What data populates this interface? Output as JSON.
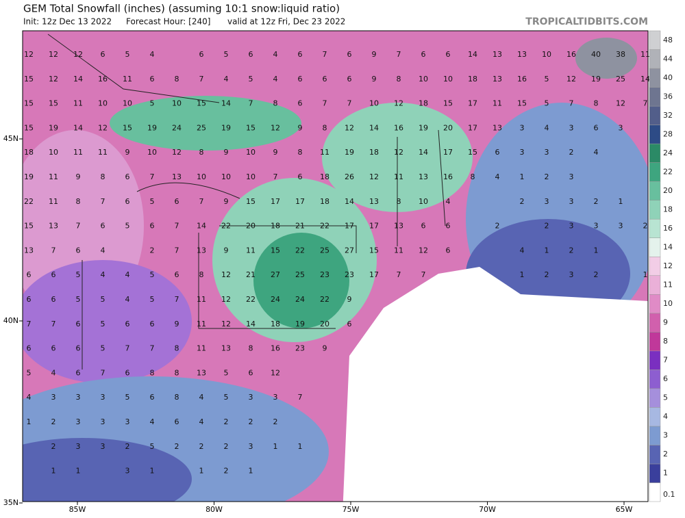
{
  "header": {
    "title": "GEM Total Snowfall (inches) (assuming 10:1 snow:liquid ratio)",
    "init": "Init: 12z Dec 13 2022",
    "forecast": "Forecast Hour: [240]",
    "valid": "valid at 12z Fri, Dec 23 2022",
    "source": "TROPICALTIDBITS.COM"
  },
  "map": {
    "lon_labels": [
      "85W",
      "80W",
      "75W",
      "70W",
      "65W"
    ],
    "lat_labels": [
      "45N",
      "40N",
      "35N"
    ],
    "labels": [
      [
        12,
        12,
        12,
        6,
        5,
        4,
        null,
        6,
        5,
        6,
        4,
        6,
        7,
        6,
        9,
        7,
        6,
        6,
        14,
        13,
        13,
        10,
        16,
        40,
        38,
        11
      ],
      [
        15,
        12,
        14,
        16,
        11,
        6,
        8,
        7,
        4,
        5,
        4,
        6,
        6,
        6,
        9,
        8,
        10,
        10,
        18,
        13,
        16,
        5,
        12,
        19,
        25,
        14
      ],
      [
        15,
        15,
        11,
        10,
        10,
        5,
        10,
        15,
        14,
        7,
        8,
        6,
        7,
        7,
        10,
        12,
        18,
        15,
        17,
        11,
        15,
        5,
        7,
        8,
        12,
        7
      ],
      [
        15,
        19,
        14,
        12,
        15,
        19,
        24,
        25,
        19,
        15,
        12,
        9,
        8,
        12,
        14,
        16,
        19,
        20,
        17,
        13,
        3,
        4,
        3,
        6,
        3,
        null
      ],
      [
        18,
        10,
        11,
        11,
        9,
        10,
        12,
        8,
        9,
        10,
        9,
        8,
        11,
        19,
        18,
        12,
        14,
        17,
        15,
        6,
        3,
        3,
        2,
        4,
        null,
        null
      ],
      [
        19,
        11,
        9,
        8,
        6,
        7,
        13,
        10,
        10,
        10,
        7,
        6,
        18,
        26,
        12,
        11,
        13,
        16,
        8,
        4,
        1,
        2,
        3,
        null,
        null,
        null
      ],
      [
        22,
        11,
        8,
        7,
        6,
        5,
        6,
        7,
        9,
        15,
        17,
        17,
        18,
        14,
        13,
        8,
        10,
        4,
        null,
        null,
        2,
        3,
        3,
        2,
        1,
        null
      ],
      [
        15,
        13,
        7,
        6,
        5,
        6,
        7,
        14,
        22,
        20,
        18,
        21,
        22,
        17,
        17,
        13,
        6,
        6,
        null,
        2,
        null,
        2,
        3,
        3,
        3,
        2
      ],
      [
        13,
        7,
        6,
        4,
        null,
        2,
        7,
        13,
        9,
        11,
        15,
        22,
        25,
        27,
        15,
        11,
        12,
        6,
        null,
        null,
        4,
        1,
        2,
        1,
        null,
        null
      ],
      [
        6,
        6,
        5,
        4,
        4,
        5,
        6,
        8,
        12,
        21,
        27,
        25,
        23,
        23,
        17,
        7,
        7,
        null,
        null,
        null,
        1,
        2,
        3,
        2,
        null,
        1
      ],
      [
        6,
        6,
        5,
        5,
        4,
        5,
        7,
        11,
        12,
        22,
        24,
        24,
        22,
        9,
        null,
        null,
        null,
        null,
        null,
        null,
        null,
        null,
        null,
        null,
        null,
        null
      ],
      [
        7,
        7,
        6,
        5,
        6,
        6,
        9,
        11,
        12,
        14,
        18,
        19,
        20,
        6,
        null,
        null,
        null,
        null,
        null,
        null,
        null,
        null,
        null,
        null,
        null,
        null
      ],
      [
        6,
        6,
        6,
        5,
        7,
        7,
        8,
        11,
        13,
        8,
        16,
        23,
        9,
        null,
        null,
        null,
        null,
        null,
        null,
        null,
        null,
        null,
        null,
        null,
        null,
        null
      ],
      [
        5,
        4,
        6,
        7,
        6,
        8,
        8,
        13,
        5,
        6,
        12,
        null,
        null,
        null,
        null,
        null,
        null,
        null,
        null,
        null,
        null,
        null,
        null,
        null,
        null,
        null
      ],
      [
        4,
        3,
        3,
        3,
        5,
        6,
        8,
        4,
        5,
        3,
        3,
        7,
        null,
        null,
        null,
        null,
        null,
        null,
        null,
        null,
        null,
        null,
        null,
        null,
        null,
        null
      ],
      [
        1,
        2,
        3,
        3,
        3,
        4,
        6,
        4,
        2,
        2,
        2,
        null,
        null,
        null,
        null,
        null,
        null,
        null,
        null,
        null,
        null,
        null,
        null,
        null,
        null,
        null
      ],
      [
        null,
        2,
        3,
        3,
        2,
        5,
        2,
        2,
        2,
        3,
        1,
        1,
        null,
        null,
        null,
        null,
        null,
        null,
        null,
        null,
        null,
        null,
        null,
        null,
        null,
        null
      ],
      [
        null,
        1,
        1,
        null,
        3,
        1,
        null,
        1,
        2,
        1,
        null,
        null,
        null,
        null,
        null,
        null,
        null,
        null,
        null,
        null,
        null,
        null,
        null,
        null,
        null,
        null
      ]
    ]
  },
  "colorbar": {
    "levels": [
      0.1,
      1,
      2,
      3,
      4,
      5,
      6,
      7,
      8,
      9,
      10,
      11,
      12,
      14,
      16,
      18,
      20,
      22,
      24,
      28,
      32,
      36,
      40,
      44,
      48
    ],
    "colors": [
      "#ffffff",
      "#3a3f9c",
      "#5864b3",
      "#7d9bd1",
      "#a7b8e2",
      "#a58fdc",
      "#8d5ed0",
      "#7a2fc0",
      "#c0389a",
      "#d160ad",
      "#e08bc6",
      "#eab0d8",
      "#f2cde6",
      "#e4f2ec",
      "#b8e4d2",
      "#8fd2b8",
      "#68bf9e",
      "#3ea57f",
      "#2b8a66",
      "#2d4b86",
      "#525e8a",
      "#6e7590",
      "#8e92a0",
      "#b0b2b8",
      "#cfd0d2"
    ]
  }
}
